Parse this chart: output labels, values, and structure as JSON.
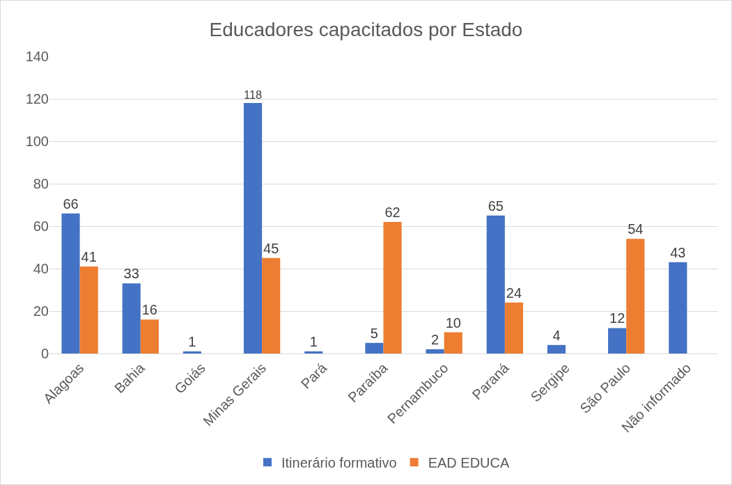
{
  "chart_data": {
    "type": "bar",
    "title": "Educadores capacitados por Estado",
    "categories": [
      "Alagoas",
      "Bahia",
      "Goiás",
      "Minas Gerais",
      "Pará",
      "Paraíba",
      "Pernambuco",
      "Paraná",
      "Sergipe",
      "São Paulo",
      "Não informado"
    ],
    "series": [
      {
        "name": "Itinerário formativo",
        "color": "#4472c4",
        "values": [
          66,
          33,
          1,
          118,
          1,
          5,
          2,
          65,
          4,
          12,
          43
        ]
      },
      {
        "name": "EAD EDUCA",
        "color": "#ed7d31",
        "values": [
          41,
          16,
          null,
          45,
          null,
          62,
          10,
          24,
          null,
          54,
          null
        ]
      }
    ],
    "ylim": [
      0,
      140
    ],
    "yticks": [
      0,
      20,
      40,
      60,
      80,
      100,
      120,
      140
    ],
    "grid": "y",
    "legend": "bottom",
    "data_labels": true
  }
}
